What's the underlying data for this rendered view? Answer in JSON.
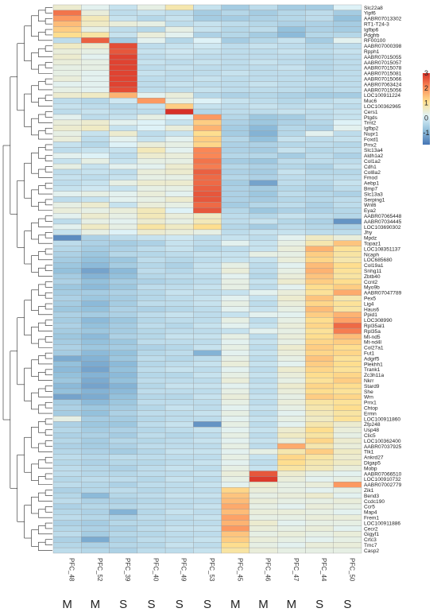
{
  "chart_data": {
    "type": "heatmap",
    "color_scale": {
      "min": -1.8,
      "max": 3,
      "ticks": [
        3,
        2,
        1,
        0,
        -1
      ],
      "colors": [
        "#4575b4",
        "#91bfdb",
        "#e0f3f8",
        "#fee090",
        "#fc8d59",
        "#d73027"
      ]
    },
    "columns": [
      "PFC_48",
      "PFC_52",
      "PFC_39",
      "PFC_40",
      "PFC_49",
      "PFC_53",
      "PFC_45",
      "PFC_46",
      "PFC_47",
      "PFC_44",
      "PFC_50"
    ],
    "groups": [
      "M",
      "M",
      "S",
      "S",
      "S",
      "S",
      "M",
      "M",
      "M",
      "S",
      "S"
    ],
    "rows": [
      "Slc22a8",
      "Yipf6",
      "AABR07013302",
      "RT1-T24-3",
      "Igfbp6",
      "Pdgfrb",
      "RF00100",
      "AABR07000398",
      "Rpph1",
      "AABR07015055",
      "AABR07015057",
      "AABR07015078",
      "AABR07015081",
      "AABR07015066",
      "AABR07063424",
      "AABR07015056",
      "LOC100911224",
      "Muc6",
      "LOC100362965",
      "Cers1",
      "Ptgds",
      "Trnt2",
      "Igfbp2",
      "Nupr1",
      "Foxd1",
      "Prrx2",
      "Slc13a4",
      "Aldh1a2",
      "Col1a2",
      "Cdh1",
      "Col8a2",
      "Fmod",
      "Aebp1",
      "Bmp7",
      "Slc13a3",
      "Serping1",
      "Wnt6",
      "Eya2",
      "AABR07065448",
      "AABR07034445",
      "LOC103690302",
      "Jhy",
      "Mpdz",
      "Topaz1",
      "LOC108351137",
      "Ncaph",
      "LOC685680",
      "Col19a1",
      "Snhg11",
      "Zbtb40",
      "Ccnt2",
      "Myo9b",
      "AABR07047789",
      "Pex5",
      "Lig4",
      "Haus6",
      "Ppid1",
      "LOC308990",
      "Rpl35al1",
      "Rpl35a",
      "Mt-nd5",
      "Mt-nd4l",
      "Col27a1",
      "Fut1",
      "Adgrf5",
      "Plekhh1",
      "Trank1",
      "Zc3h11a",
      "Nkrr",
      "Stard9",
      "She",
      "Wrn",
      "Prrx1",
      "Chtop",
      "Ermn",
      "LOC100911860",
      "Zfp248",
      "Usp48",
      "Clic5",
      "LOC100362400",
      "AABR07037925",
      "Tlk1",
      "Ankrd27",
      "Dlgap5",
      "Mobp",
      "AABR07066510",
      "LOC100910732",
      "AABR07002779",
      "Zik1",
      "Bend3",
      "Ccdc190",
      "Ccr5",
      "Map4",
      "Frem1",
      "LOC100911886",
      "Cecr2",
      "Gigyf1",
      "Crtc3",
      "Tmc7",
      "Casp2"
    ],
    "values": [
      [
        0.5,
        0.2,
        -0.2,
        0.3,
        0.8,
        -0.2,
        -0.6,
        -0.3,
        -0.6,
        -0.6,
        0.1
      ],
      [
        2.3,
        0.4,
        -0.3,
        -0.2,
        -0.3,
        -0.6,
        -0.4,
        -0.6,
        -0.4,
        -0.3,
        -0.6
      ],
      [
        1.9,
        0.7,
        -0.2,
        -0.4,
        -0.2,
        -0.6,
        -0.6,
        -0.5,
        -0.4,
        -0.3,
        -0.8
      ],
      [
        1.5,
        0.6,
        0.4,
        0.3,
        -0.3,
        -0.2,
        -0.3,
        -0.4,
        -0.5,
        -0.5,
        -0.6
      ],
      [
        1.3,
        0.3,
        -0.3,
        -0.4,
        0.3,
        -0.2,
        -0.4,
        -0.3,
        -0.8,
        -0.5,
        -0.6
      ],
      [
        1.1,
        0.9,
        -0.2,
        0.4,
        0.2,
        -0.5,
        -0.4,
        -0.6,
        -0.9,
        -0.4,
        -0.4
      ],
      [
        -0.3,
        2.5,
        -0.6,
        0.2,
        -0.4,
        0.1,
        -0.6,
        -0.4,
        -0.2,
        -0.6,
        0.2
      ],
      [
        0.6,
        0.5,
        2.7,
        -0.3,
        -0.2,
        -0.1,
        -0.3,
        -0.2,
        -0.3,
        -0.4,
        -0.3
      ],
      [
        0.4,
        0.3,
        2.6,
        -0.2,
        -0.1,
        -0.2,
        -0.3,
        -0.3,
        -0.2,
        -0.3,
        -0.2
      ],
      [
        0.5,
        0.2,
        2.8,
        -0.3,
        -0.2,
        -0.3,
        -0.3,
        -0.3,
        -0.3,
        -0.4,
        -0.3
      ],
      [
        0.4,
        0.3,
        2.8,
        -0.2,
        -0.3,
        -0.2,
        -0.3,
        -0.2,
        -0.3,
        -0.4,
        -0.3
      ],
      [
        0.3,
        0.3,
        2.8,
        -0.3,
        -0.2,
        -0.3,
        -0.3,
        -0.3,
        -0.2,
        -0.4,
        -0.3
      ],
      [
        0.3,
        0.2,
        2.8,
        -0.2,
        -0.3,
        -0.3,
        -0.2,
        -0.3,
        -0.3,
        -0.4,
        -0.3
      ],
      [
        0.4,
        0.2,
        2.8,
        -0.3,
        -0.3,
        -0.2,
        -0.3,
        -0.3,
        -0.3,
        -0.3,
        -0.3
      ],
      [
        0.2,
        0.2,
        2.8,
        -0.3,
        -0.2,
        -0.3,
        -0.3,
        -0.2,
        -0.3,
        -0.3,
        -0.3
      ],
      [
        0.3,
        0.2,
        2.7,
        -0.3,
        -0.3,
        -0.2,
        -0.3,
        -0.3,
        -0.3,
        -0.4,
        -0.3
      ],
      [
        0.5,
        0.6,
        1.6,
        0.2,
        0.4,
        -0.4,
        -0.5,
        -0.4,
        -0.5,
        -0.6,
        -0.6
      ],
      [
        -0.3,
        -0.4,
        -0.1,
        1.9,
        0.3,
        0.1,
        -0.2,
        -0.3,
        -0.4,
        -0.3,
        -0.2
      ],
      [
        -0.2,
        -0.3,
        -0.4,
        -0.2,
        1.3,
        -0.2,
        -0.3,
        -0.2,
        -0.3,
        -0.2,
        -0.3
      ],
      [
        -0.3,
        -0.2,
        -0.3,
        -0.3,
        3.0,
        -0.4,
        -0.3,
        -0.3,
        -0.2,
        -0.3,
        -0.2
      ],
      [
        0.2,
        -0.3,
        -0.2,
        0.3,
        0.1,
        1.9,
        -0.4,
        -0.7,
        -0.6,
        -0.3,
        -0.2
      ],
      [
        0.4,
        0.5,
        0.2,
        0.1,
        -0.2,
        1.3,
        -0.5,
        -0.7,
        -0.5,
        -0.4,
        0.1
      ],
      [
        0.5,
        0.6,
        -0.2,
        0.1,
        0.4,
        1.6,
        -0.6,
        -0.9,
        -0.4,
        -0.5,
        0.2
      ],
      [
        0.3,
        -0.2,
        0.5,
        -0.3,
        -0.2,
        1.1,
        -0.6,
        -1.0,
        -0.4,
        0.2,
        -0.3
      ],
      [
        0.4,
        -0.3,
        0.2,
        -0.2,
        0.2,
        1.3,
        -0.4,
        -0.8,
        -0.2,
        -0.3,
        -0.2
      ],
      [
        -0.2,
        -0.4,
        0.1,
        0.4,
        0.3,
        1.2,
        -0.5,
        -0.5,
        -0.4,
        -0.3,
        -0.4
      ],
      [
        -0.3,
        -0.2,
        -0.2,
        0.7,
        0.2,
        2.1,
        -0.5,
        -0.6,
        -0.2,
        -0.4,
        -0.3
      ],
      [
        0.2,
        0.1,
        -0.3,
        0.5,
        0.4,
        2.1,
        -0.4,
        -0.4,
        -0.6,
        -0.3,
        -0.5
      ],
      [
        -0.2,
        0.3,
        -0.2,
        0.3,
        0.3,
        2.3,
        -0.6,
        -0.7,
        -0.3,
        -0.3,
        -0.3
      ],
      [
        0.3,
        -0.2,
        0.2,
        0.2,
        0.5,
        2.2,
        -0.4,
        -0.5,
        -0.4,
        -0.5,
        -0.2
      ],
      [
        -0.3,
        -0.2,
        -0.3,
        0.4,
        0.5,
        2.5,
        -0.5,
        -0.6,
        -0.2,
        -0.4,
        -0.4
      ],
      [
        -0.2,
        -0.3,
        -0.2,
        0.3,
        0.3,
        2.4,
        -0.4,
        -0.5,
        -0.3,
        -0.3,
        -0.3
      ],
      [
        -0.3,
        -0.2,
        0.3,
        0.5,
        0.5,
        2.4,
        -0.6,
        -1.2,
        -0.3,
        -0.4,
        -0.2
      ],
      [
        -0.2,
        -0.1,
        -0.2,
        0.3,
        0.3,
        2.5,
        -0.5,
        -0.6,
        -0.4,
        -0.5,
        -0.3
      ],
      [
        0.2,
        0.3,
        0.2,
        0.4,
        0.2,
        2.6,
        -0.5,
        -0.7,
        -0.3,
        -0.4,
        -0.5
      ],
      [
        -0.3,
        -0.2,
        0.2,
        0.3,
        0.5,
        2.6,
        -0.5,
        -0.6,
        -0.4,
        -0.4,
        -0.3
      ],
      [
        0.3,
        0.5,
        -0.2,
        0.4,
        0.3,
        2.4,
        -0.6,
        -0.4,
        -0.3,
        -0.5,
        -0.3
      ],
      [
        0.4,
        0.3,
        0.4,
        0.7,
        0.1,
        2.6,
        -0.4,
        -0.7,
        -0.5,
        -0.5,
        -0.4
      ],
      [
        0.2,
        0.5,
        0.3,
        0.7,
        0.4,
        0.6,
        -0.3,
        -0.4,
        -0.2,
        -0.3,
        -0.4
      ],
      [
        -0.3,
        0.3,
        0.2,
        0.5,
        0.3,
        0.7,
        -0.3,
        -0.2,
        -0.4,
        -0.5,
        -1.4
      ],
      [
        0.2,
        0.6,
        0.3,
        0.9,
        0.6,
        1.1,
        -0.4,
        -0.6,
        -0.3,
        -0.4,
        -0.5
      ],
      [
        -0.2,
        0.3,
        0.1,
        0.5,
        0.4,
        0.3,
        -0.3,
        -0.2,
        -0.2,
        -0.3,
        -0.3
      ],
      [
        -1.5,
        -0.5,
        -0.3,
        -0.2,
        -0.1,
        -0.3,
        -0.2,
        -0.3,
        0.2,
        0.6,
        0.4
      ],
      [
        -0.3,
        -0.5,
        -0.6,
        -0.5,
        -0.2,
        -0.3,
        0.2,
        -0.2,
        0.3,
        0.8,
        1.4
      ],
      [
        -0.4,
        -0.6,
        -0.5,
        -0.3,
        -0.2,
        -0.4,
        -0.3,
        -0.2,
        0.4,
        1.6,
        1.0
      ],
      [
        -0.5,
        -0.7,
        -0.4,
        -0.4,
        -0.3,
        -0.2,
        -0.2,
        0.3,
        0.3,
        1.3,
        0.9
      ],
      [
        -0.6,
        -0.8,
        -0.7,
        -0.3,
        -0.4,
        -0.3,
        -0.2,
        -0.2,
        0.4,
        1.2,
        0.8
      ],
      [
        -0.7,
        -0.9,
        -0.6,
        -0.4,
        -0.5,
        -0.2,
        0.3,
        -0.3,
        0.2,
        1.5,
        1.1
      ],
      [
        -0.8,
        -1.2,
        -0.9,
        -0.3,
        -0.4,
        -0.2,
        0.4,
        -0.3,
        0.3,
        1.6,
        1.0
      ],
      [
        -0.6,
        -1.0,
        -0.8,
        -0.4,
        -0.3,
        -0.3,
        0.2,
        -0.4,
        0.4,
        1.4,
        0.9
      ],
      [
        -0.5,
        -0.8,
        -0.6,
        -0.5,
        -0.4,
        -0.3,
        0.3,
        -0.2,
        0.5,
        1.3,
        1.1
      ],
      [
        -0.7,
        -0.9,
        -0.7,
        -0.3,
        -0.3,
        -0.2,
        0.3,
        -0.3,
        0.2,
        1.1,
        1.3
      ],
      [
        -0.6,
        -0.6,
        -0.5,
        -0.4,
        -0.2,
        -0.3,
        -0.2,
        0.2,
        0.4,
        1.0,
        1.7
      ],
      [
        -0.5,
        -0.7,
        -0.6,
        -0.4,
        -0.3,
        -0.2,
        0.2,
        -0.2,
        0.5,
        1.4,
        0.8
      ],
      [
        -0.6,
        -0.9,
        -0.6,
        -0.3,
        -0.3,
        -0.2,
        0.3,
        -0.3,
        0.4,
        1.2,
        1.0
      ],
      [
        -0.7,
        -0.8,
        -0.5,
        -0.5,
        -0.4,
        -0.3,
        0.2,
        -0.2,
        0.3,
        1.5,
        0.9
      ],
      [
        -0.5,
        -0.6,
        -0.5,
        -0.3,
        -0.2,
        -0.3,
        -0.2,
        0.2,
        0.2,
        1.3,
        1.6
      ],
      [
        -0.6,
        -0.9,
        -0.7,
        -0.4,
        -0.3,
        -0.3,
        0.3,
        -0.3,
        0.3,
        1.1,
        1.8
      ],
      [
        -0.5,
        -0.8,
        -0.6,
        -0.3,
        -0.4,
        -0.2,
        0.2,
        -0.2,
        0.4,
        1.2,
        2.4
      ],
      [
        -0.6,
        -0.7,
        -0.6,
        -0.4,
        -0.3,
        -0.3,
        -0.2,
        0.2,
        0.3,
        1.0,
        2.2
      ],
      [
        -0.7,
        -0.9,
        -0.5,
        -0.4,
        -0.2,
        -0.2,
        0.3,
        -0.3,
        0.4,
        1.1,
        1.5
      ],
      [
        -0.6,
        -0.8,
        -0.7,
        -0.3,
        -0.3,
        -0.3,
        0.2,
        -0.2,
        0.3,
        1.2,
        1.3
      ],
      [
        -0.5,
        -0.7,
        -0.6,
        -0.5,
        -0.4,
        -0.2,
        0.3,
        -0.3,
        0.5,
        1.3,
        1.1
      ],
      [
        -0.6,
        -0.9,
        -0.8,
        -0.4,
        -0.3,
        -1.0,
        0.2,
        -0.2,
        0.4,
        1.2,
        1.2
      ],
      [
        -1.1,
        -1.0,
        -0.7,
        -0.3,
        -0.4,
        -0.3,
        0.3,
        -0.3,
        0.3,
        1.4,
        1.0
      ],
      [
        -0.8,
        -1.1,
        -0.9,
        -0.4,
        -0.3,
        -0.2,
        0.4,
        -0.2,
        0.2,
        1.3,
        1.1
      ],
      [
        -0.9,
        -1.2,
        -0.8,
        -0.3,
        -0.2,
        -0.3,
        0.2,
        -0.3,
        0.5,
        1.2,
        1.0
      ],
      [
        -0.8,
        -1.0,
        -0.9,
        -0.4,
        -0.4,
        -0.2,
        0.3,
        -0.2,
        0.4,
        1.1,
        1.2
      ],
      [
        -0.7,
        -1.1,
        -0.8,
        -0.3,
        -0.3,
        -0.3,
        0.4,
        -0.3,
        0.3,
        1.0,
        1.3
      ],
      [
        -0.9,
        -1.2,
        -1.0,
        -0.4,
        -0.2,
        -0.2,
        0.2,
        -0.2,
        0.5,
        1.2,
        1.1
      ],
      [
        -0.8,
        -1.0,
        -0.9,
        -0.3,
        -0.3,
        -0.3,
        0.3,
        -0.3,
        0.4,
        1.1,
        1.0
      ],
      [
        -1.2,
        -1.1,
        -0.8,
        -0.4,
        -0.4,
        -0.2,
        0.4,
        -0.2,
        0.3,
        1.3,
        1.2
      ],
      [
        -0.6,
        -0.9,
        -0.7,
        -0.3,
        -0.3,
        -0.3,
        0.3,
        -0.3,
        0.4,
        0.9,
        1.0
      ],
      [
        -0.5,
        -0.7,
        -0.6,
        -0.4,
        -0.2,
        -0.3,
        0.2,
        -0.2,
        0.3,
        0.8,
        1.1
      ],
      [
        -0.6,
        -0.8,
        -0.5,
        -0.3,
        -0.3,
        -0.2,
        0.3,
        -0.3,
        0.2,
        0.7,
        0.9
      ],
      [
        0.3,
        -0.6,
        -0.6,
        -0.4,
        -0.3,
        -0.3,
        0.2,
        -0.2,
        0.3,
        0.6,
        1.0
      ],
      [
        -0.5,
        -0.7,
        -0.7,
        -0.3,
        -0.2,
        -1.4,
        0.3,
        -0.3,
        0.2,
        0.8,
        0.5
      ],
      [
        -0.4,
        -0.6,
        -0.5,
        -0.4,
        -0.3,
        -0.2,
        0.2,
        -0.2,
        0.5,
        1.1,
        0.4
      ],
      [
        -0.5,
        -0.5,
        -0.6,
        -0.3,
        -0.4,
        -0.3,
        0.3,
        -0.3,
        0.6,
        0.9,
        0.3
      ],
      [
        -0.4,
        -0.6,
        -0.4,
        -0.4,
        -0.3,
        -0.2,
        0.2,
        -0.2,
        0.4,
        1.2,
        0.5
      ],
      [
        -0.5,
        -0.6,
        -0.5,
        -0.3,
        -0.3,
        -0.3,
        0.3,
        -0.3,
        1.7,
        0.8,
        0.4
      ],
      [
        -0.4,
        -0.5,
        -0.6,
        -0.4,
        -0.2,
        -0.2,
        0.2,
        0.3,
        0.8,
        1.3,
        0.6
      ],
      [
        -0.3,
        -0.4,
        -0.3,
        -0.3,
        -0.3,
        -0.3,
        0.3,
        -0.2,
        1.2,
        0.9,
        0.5
      ],
      [
        -0.4,
        -0.5,
        -0.4,
        -0.4,
        -0.3,
        -0.2,
        0.2,
        -0.3,
        1.1,
        0.8,
        0.6
      ],
      [
        -0.3,
        -0.4,
        -0.5,
        -0.3,
        -0.2,
        -0.3,
        0.3,
        -0.2,
        0.9,
        0.7,
        0.4
      ],
      [
        -0.3,
        -0.4,
        -0.4,
        -0.3,
        -0.3,
        -0.2,
        0.4,
        2.6,
        0.5,
        0.3,
        0.2
      ],
      [
        -0.4,
        -0.3,
        -0.3,
        -0.4,
        -0.2,
        -0.3,
        0.3,
        2.9,
        0.4,
        0.2,
        0.3
      ],
      [
        -0.3,
        -0.4,
        -0.5,
        -0.3,
        -0.3,
        -0.2,
        0.2,
        0.5,
        0.3,
        0.4,
        1.9
      ],
      [
        -0.5,
        -0.4,
        -0.3,
        -0.4,
        -0.3,
        -0.3,
        1.2,
        0.4,
        0.3,
        0.2,
        0.3
      ],
      [
        -0.4,
        -0.9,
        -0.4,
        -0.3,
        -0.2,
        -0.2,
        1.4,
        0.3,
        0.4,
        0.5,
        0.2
      ],
      [
        -0.3,
        -0.5,
        -0.5,
        -0.4,
        -0.3,
        -0.3,
        1.5,
        0.4,
        0.3,
        0.3,
        0.4
      ],
      [
        -0.5,
        -0.4,
        -0.4,
        -0.3,
        -0.3,
        -0.2,
        1.7,
        0.3,
        0.2,
        0.4,
        0.3
      ],
      [
        -0.4,
        -0.5,
        -1.0,
        -0.4,
        -0.2,
        -0.3,
        1.5,
        0.4,
        0.4,
        0.3,
        0.2
      ],
      [
        -0.3,
        -0.4,
        -0.5,
        -0.3,
        -0.3,
        -0.2,
        1.8,
        0.3,
        0.3,
        0.4,
        0.4
      ],
      [
        -0.5,
        -0.6,
        -0.4,
        -0.4,
        -0.3,
        -0.3,
        1.6,
        0.5,
        0.2,
        0.3,
        0.3
      ],
      [
        -0.4,
        -0.5,
        -0.5,
        -0.3,
        -0.2,
        -0.2,
        1.9,
        0.4,
        0.3,
        0.4,
        0.2
      ],
      [
        -0.3,
        -0.6,
        -0.4,
        -0.4,
        -0.3,
        -0.3,
        1.4,
        0.3,
        0.4,
        0.3,
        0.4
      ],
      [
        -0.5,
        -1.1,
        -0.5,
        -0.3,
        -0.3,
        -0.2,
        1.3,
        0.4,
        0.3,
        0.2,
        0.3
      ],
      [
        -0.4,
        -0.5,
        -0.4,
        -0.4,
        -0.2,
        -0.3,
        1.1,
        0.3,
        0.2,
        0.4,
        0.4
      ],
      [
        -0.3,
        -0.4,
        -0.5,
        -0.3,
        -0.3,
        -0.2,
        0.9,
        0.4,
        0.3,
        0.3,
        0.3
      ]
    ]
  }
}
